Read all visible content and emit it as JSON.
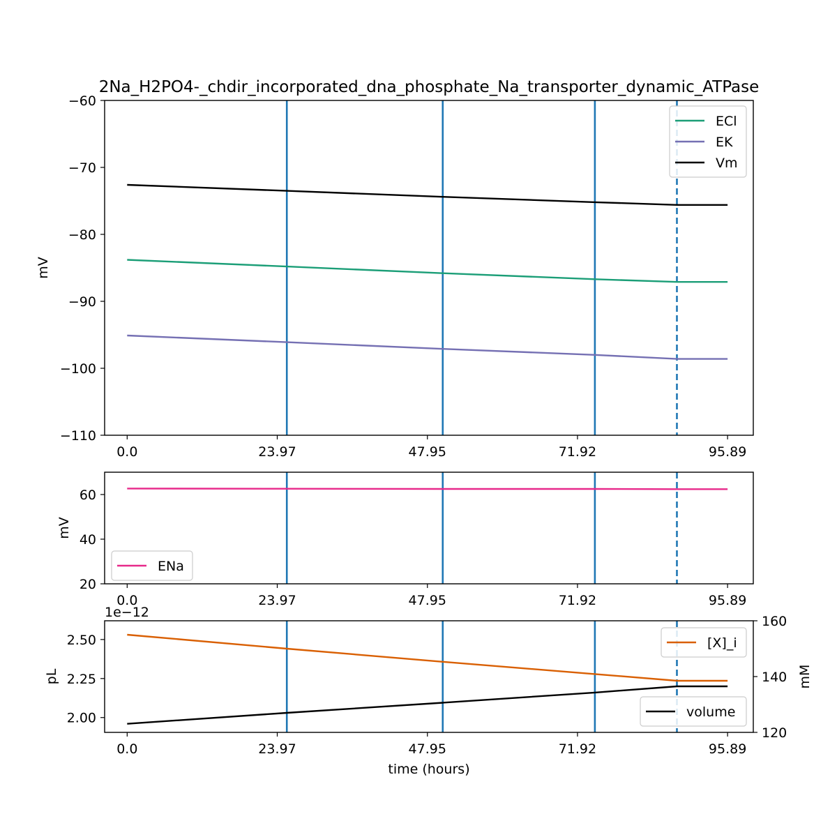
{
  "title": "2Na_H2PO4-_chdir_incorporated_dna_phosphate_Na_transporter_dynamic_ATPase",
  "chart_data": [
    {
      "type": "line",
      "ylabel": "mV",
      "xlim": [
        -3.6,
        100.0
      ],
      "ylim": [
        -110,
        -60
      ],
      "x_ticks": [
        0.0,
        23.97,
        47.95,
        71.92,
        95.89
      ],
      "x_tick_labels": [
        "0.0",
        "23.97",
        "47.95",
        "71.92",
        "95.89"
      ],
      "y_ticks": [
        -60,
        -70,
        -80,
        -90,
        -100,
        -110
      ],
      "y_tick_labels": [
        "−60",
        "−70",
        "−80",
        "−90",
        "−100",
        "−110"
      ],
      "legend_position": "upper right",
      "vlines_solid": [
        25.5,
        50.4,
        74.7
      ],
      "vline_dashed": 87.8,
      "series": [
        {
          "name": "ECl",
          "color": "#1b9e77",
          "x": [
            0,
            25.5,
            50.4,
            74.7,
            87.8,
            95.89
          ],
          "y": [
            -83.8,
            -84.8,
            -85.8,
            -86.7,
            -87.1,
            -87.1
          ]
        },
        {
          "name": "EK",
          "color": "#7570b3",
          "x": [
            0,
            25.5,
            50.4,
            74.7,
            87.8,
            95.89
          ],
          "y": [
            -95.1,
            -96.1,
            -97.1,
            -98.0,
            -98.6,
            -98.6
          ]
        },
        {
          "name": "Vm",
          "color": "#000000",
          "x": [
            0,
            25.5,
            50.4,
            74.7,
            87.8,
            95.89
          ],
          "y": [
            -72.6,
            -73.5,
            -74.4,
            -75.2,
            -75.6,
            -75.6
          ]
        }
      ]
    },
    {
      "type": "line",
      "ylabel": "mV",
      "xlim": [
        -3.6,
        100.0
      ],
      "ylim": [
        20,
        70
      ],
      "x_ticks": [
        0.0,
        23.97,
        47.95,
        71.92,
        95.89
      ],
      "x_tick_labels": [
        "0.0",
        "23.97",
        "47.95",
        "71.92",
        "95.89"
      ],
      "y_ticks": [
        20,
        40,
        60
      ],
      "y_tick_labels": [
        "20",
        "40",
        "60"
      ],
      "legend_position": "lower left",
      "vlines_solid": [
        25.5,
        50.4,
        74.7
      ],
      "vline_dashed": 87.8,
      "series": [
        {
          "name": "ENa",
          "color": "#e7298a",
          "x": [
            0,
            25.5,
            50.4,
            74.7,
            87.8,
            95.89
          ],
          "y": [
            62.7,
            62.6,
            62.5,
            62.5,
            62.4,
            62.4
          ]
        }
      ]
    },
    {
      "type": "line",
      "xlabel": "time (hours)",
      "ylabel": "pL",
      "ylabel_right": "mM",
      "offset_text": "1e−12",
      "xlim": [
        -3.6,
        100.0
      ],
      "ylim": [
        1.905,
        2.62
      ],
      "ylim_right": [
        120,
        160
      ],
      "x_ticks": [
        0.0,
        23.97,
        47.95,
        71.92,
        95.89
      ],
      "x_tick_labels": [
        "0.0",
        "23.97",
        "47.95",
        "71.92",
        "95.89"
      ],
      "y_ticks": [
        2.0,
        2.25,
        2.5
      ],
      "y_tick_labels": [
        "2.00",
        "2.25",
        "2.50"
      ],
      "y_ticks_right": [
        120,
        140,
        160
      ],
      "y_tick_labels_right": [
        "120",
        "140",
        "160"
      ],
      "vlines_solid": [
        25.5,
        50.4,
        74.7
      ],
      "vline_dashed": 87.8,
      "series": [
        {
          "name": "volume",
          "color": "#000000",
          "axis": "left",
          "legend_position": "lower right",
          "x": [
            0,
            25.5,
            50.4,
            74.7,
            87.8,
            95.89
          ],
          "y": [
            1.96,
            2.03,
            2.095,
            2.16,
            2.2,
            2.2
          ]
        },
        {
          "name": "[X]_i",
          "color": "#d95f02",
          "axis": "right",
          "legend_position": "upper right",
          "x": [
            0,
            25.5,
            50.4,
            74.7,
            87.8,
            95.89
          ],
          "y": [
            155.0,
            150.0,
            145.3,
            140.9,
            138.5,
            138.5
          ]
        }
      ]
    }
  ]
}
